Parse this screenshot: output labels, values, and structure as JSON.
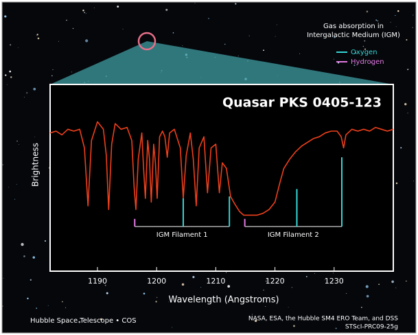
{
  "chart_data": {
    "type": "line",
    "title": "Quasar PKS 0405-123",
    "x_label": "Wavelength (Angstroms)",
    "y_label": "Brightness",
    "legend_title": "Gas absorption in Intergalactic Medium (IGM)",
    "legend_position": "upper right",
    "credit_left": "Hubble Space Telescope • COS",
    "credit_right": "NASA, ESA, the Hubble SM4 ERO Team, and DSS",
    "credit_id": "STScI-PRC09-25g",
    "xlim": [
      1182,
      1240
    ],
    "ylim": [
      0,
      1
    ],
    "xticks": [
      1190,
      1200,
      1210,
      1220,
      1230
    ],
    "spectrum": {
      "color": "#f0401c",
      "x": [
        1182,
        1183,
        1184,
        1185,
        1186,
        1187,
        1187.8,
        1188.4,
        1189,
        1190,
        1191,
        1191.5,
        1191.9,
        1192.4,
        1193,
        1194,
        1195,
        1195.8,
        1196.2,
        1196.5,
        1196.9,
        1197.5,
        1197.8,
        1198.1,
        1198.5,
        1198.8,
        1199.1,
        1199.5,
        1199.8,
        1200.1,
        1200.5,
        1201,
        1201.4,
        1201.8,
        1202.2,
        1203,
        1204,
        1204.5,
        1205,
        1205.7,
        1206.2,
        1206.7,
        1207.2,
        1208,
        1208.6,
        1209.2,
        1210,
        1210.6,
        1211.1,
        1211.8,
        1212.5,
        1213.2,
        1214,
        1214.7,
        1216,
        1217,
        1218,
        1219,
        1220,
        1220.8,
        1221.5,
        1222.5,
        1223.5,
        1224.5,
        1225.5,
        1226.5,
        1227.5,
        1228.5,
        1229.5,
        1230.5,
        1231.2,
        1231.6,
        1232,
        1233,
        1234,
        1235,
        1236,
        1237,
        1238,
        1239,
        1240
      ],
      "values": [
        0.74,
        0.75,
        0.73,
        0.76,
        0.75,
        0.76,
        0.66,
        0.35,
        0.7,
        0.8,
        0.76,
        0.62,
        0.33,
        0.68,
        0.79,
        0.76,
        0.77,
        0.7,
        0.45,
        0.33,
        0.6,
        0.74,
        0.55,
        0.39,
        0.7,
        0.6,
        0.37,
        0.68,
        0.58,
        0.39,
        0.72,
        0.75,
        0.72,
        0.61,
        0.74,
        0.76,
        0.66,
        0.39,
        0.62,
        0.74,
        0.6,
        0.35,
        0.66,
        0.72,
        0.42,
        0.66,
        0.68,
        0.42,
        0.58,
        0.55,
        0.4,
        0.36,
        0.32,
        0.3,
        0.3,
        0.3,
        0.31,
        0.33,
        0.37,
        0.47,
        0.55,
        0.6,
        0.64,
        0.67,
        0.69,
        0.71,
        0.72,
        0.74,
        0.75,
        0.75,
        0.72,
        0.66,
        0.73,
        0.76,
        0.75,
        0.76,
        0.75,
        0.77,
        0.76,
        0.75,
        0.76
      ]
    },
    "series": [
      {
        "name": "Oxygen",
        "color": "#35d6d6",
        "markers": [
          {
            "x": 1204.5,
            "top": 0.39
          },
          {
            "x": 1212.3,
            "top": 0.4
          },
          {
            "x": 1223.7,
            "top": 0.44
          },
          {
            "x": 1231.3,
            "top": 0.61
          }
        ]
      },
      {
        "name": "Hydrogen",
        "color": "#e27ae2",
        "markers": [
          {
            "x": 1196.3,
            "top": 0.28
          },
          {
            "x": 1214.9,
            "top": 0.28
          }
        ]
      }
    ],
    "filaments": [
      {
        "label": "IGM Filament 1",
        "x": [
          1196.3,
          1212.3
        ]
      },
      {
        "label": "IGM Filament 2",
        "x": [
          1214.9,
          1231.3
        ]
      }
    ]
  }
}
